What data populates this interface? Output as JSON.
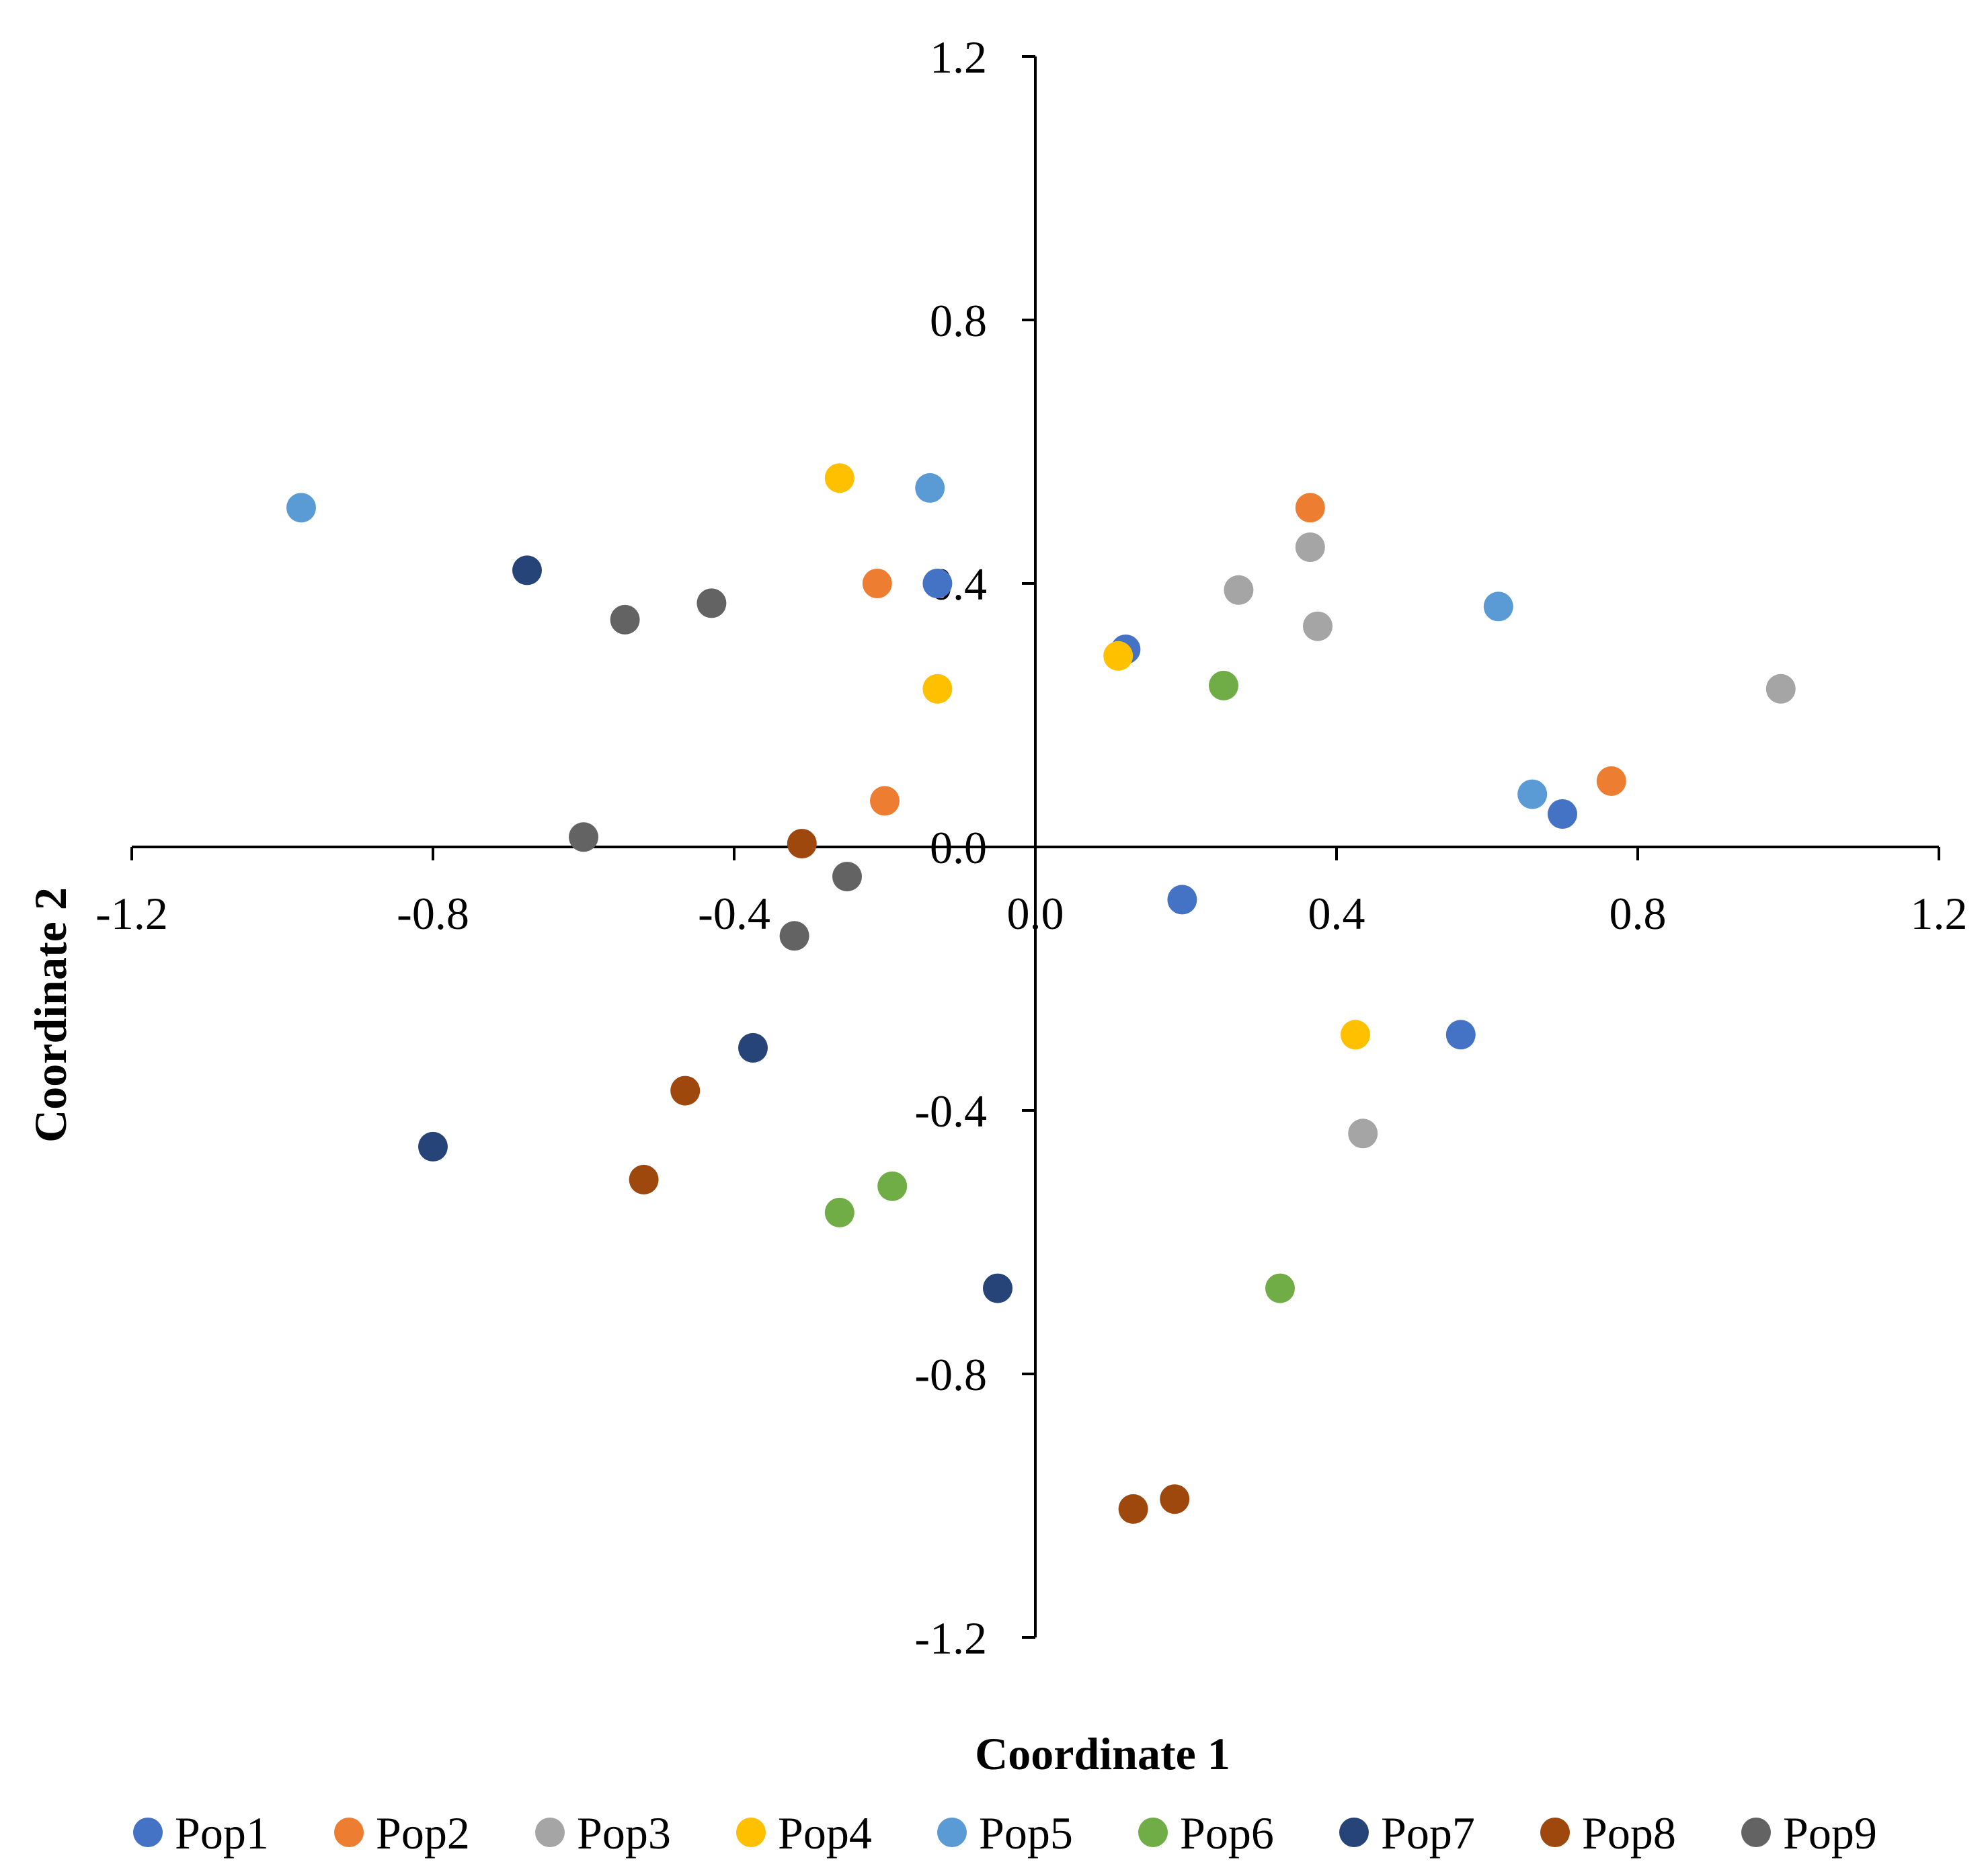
{
  "chart_data": {
    "type": "scatter",
    "title": "",
    "xlabel": "Coordinate 1",
    "ylabel": "Coordinate 2",
    "xlim": [
      -1.2,
      1.2
    ],
    "ylim": [
      -1.2,
      1.2
    ],
    "x_ticks": [
      "-1.2",
      "-0.8",
      "-0.4",
      "0.0",
      "0.4",
      "0.8",
      "1.2"
    ],
    "y_ticks": [
      "1.2",
      "0.8",
      "0.4",
      "0.0",
      "-0.4",
      "-0.8",
      "-1.2"
    ],
    "grid": false,
    "legend_position": "bottom",
    "series": [
      {
        "name": "Pop1",
        "color": "#4472C4",
        "points": [
          [
            -0.13,
            0.4
          ],
          [
            0.12,
            0.3
          ],
          [
            0.7,
            0.05
          ],
          [
            0.195,
            -0.08
          ],
          [
            0.565,
            -0.285
          ]
        ]
      },
      {
        "name": "Pop2",
        "color": "#ED7D31",
        "points": [
          [
            0.365,
            0.515
          ],
          [
            -0.21,
            0.4
          ],
          [
            0.765,
            0.1
          ],
          [
            -0.2,
            0.07
          ]
        ]
      },
      {
        "name": "Pop3",
        "color": "#A5A5A5",
        "points": [
          [
            0.365,
            0.455
          ],
          [
            0.27,
            0.39
          ],
          [
            0.375,
            0.335
          ],
          [
            0.99,
            0.24
          ],
          [
            0.435,
            -0.435
          ]
        ]
      },
      {
        "name": "Pop4",
        "color": "#FFC000",
        "points": [
          [
            -0.26,
            0.56
          ],
          [
            0.11,
            0.29
          ],
          [
            -0.13,
            0.24
          ],
          [
            0.425,
            -0.285
          ]
        ]
      },
      {
        "name": "Pop5",
        "color": "#5B9BD5",
        "points": [
          [
            -0.975,
            0.515
          ],
          [
            -0.14,
            0.545
          ],
          [
            0.615,
            0.365
          ],
          [
            0.66,
            0.08
          ]
        ]
      },
      {
        "name": "Pop6",
        "color": "#70AD47",
        "points": [
          [
            0.25,
            0.245
          ],
          [
            -0.26,
            -0.555
          ],
          [
            -0.19,
            -0.515
          ],
          [
            0.325,
            -0.67
          ]
        ]
      },
      {
        "name": "Pop7",
        "color": "#264478",
        "points": [
          [
            -0.675,
            0.42
          ],
          [
            -0.375,
            -0.305
          ],
          [
            -0.8,
            -0.455
          ],
          [
            -0.05,
            -0.67
          ]
        ]
      },
      {
        "name": "Pop8",
        "color": "#9E480E",
        "points": [
          [
            -0.31,
            0.005
          ],
          [
            -0.465,
            -0.37
          ],
          [
            -0.52,
            -0.505
          ],
          [
            0.13,
            -1.005
          ],
          [
            0.185,
            -0.99
          ]
        ]
      },
      {
        "name": "Pop9",
        "color": "#636363",
        "points": [
          [
            -0.43,
            0.37
          ],
          [
            -0.545,
            0.345
          ],
          [
            -0.6,
            0.015
          ],
          [
            -0.25,
            -0.045
          ],
          [
            -0.32,
            -0.135
          ]
        ]
      }
    ]
  }
}
